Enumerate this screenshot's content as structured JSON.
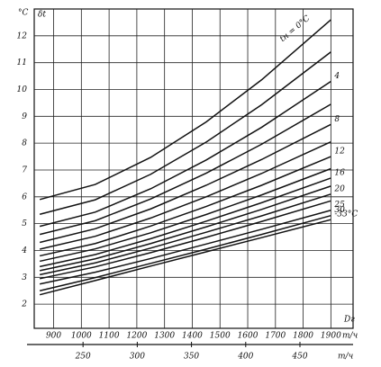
{
  "chart_data": {
    "type": "line",
    "y_unit": "°C",
    "y_label": "δt",
    "x_label": "Dг",
    "x_unit": "m/ч",
    "x2_unit": "m/ч",
    "xlim": [
      830,
      1980
    ],
    "xticks": [
      900,
      1000,
      1100,
      1200,
      1300,
      1400,
      1500,
      1600,
      1700,
      1800,
      1900
    ],
    "x2lim": [
      205,
      499
    ],
    "x2ticks": [
      250,
      300,
      350,
      400,
      450
    ],
    "ylim": [
      1.1,
      13
    ],
    "yticks": [
      2,
      3,
      4,
      5,
      6,
      7,
      8,
      9,
      10,
      11,
      12
    ],
    "grid": true,
    "x": [
      850,
      1050,
      1250,
      1450,
      1650,
      1900
    ],
    "series": [
      {
        "name": "tн = 0°C",
        "color": "#111111",
        "values": [
          5.9,
          6.46,
          7.47,
          8.79,
          10.36,
          12.6
        ]
      },
      {
        "color": "#111111",
        "values": [
          5.35,
          5.89,
          6.84,
          8.04,
          9.43,
          11.4
        ]
      },
      {
        "name": "4",
        "color": "#111111",
        "values": [
          4.9,
          5.43,
          6.3,
          7.37,
          8.59,
          10.3
        ]
      },
      {
        "color": "#111111",
        "values": [
          4.6,
          5.11,
          5.92,
          6.88,
          7.96,
          9.45
        ]
      },
      {
        "name": "8",
        "color": "#111111",
        "values": [
          4.3,
          4.81,
          5.55,
          6.43,
          7.39,
          8.7
        ]
      },
      {
        "color": "#111111",
        "values": [
          4.05,
          4.53,
          5.21,
          6.0,
          6.87,
          8.05
        ]
      },
      {
        "name": "12",
        "color": "#111111",
        "values": [
          3.8,
          4.26,
          4.91,
          5.64,
          6.43,
          7.5
        ]
      },
      {
        "color": "#111111",
        "values": [
          3.6,
          4.06,
          4.66,
          5.34,
          6.07,
          7.05
        ]
      },
      {
        "name": "16",
        "color": "#111111",
        "values": [
          3.4,
          3.85,
          4.44,
          5.09,
          5.78,
          6.7
        ]
      },
      {
        "color": "#111111",
        "values": [
          3.25,
          3.69,
          4.26,
          4.88,
          5.53,
          6.4
        ]
      },
      {
        "name": "20",
        "color": "#111111",
        "values": [
          3.1,
          3.54,
          4.09,
          4.68,
          5.29,
          6.1
        ]
      },
      {
        "color": "#111111",
        "values": [
          2.95,
          3.39,
          3.92,
          4.49,
          5.08,
          5.85
        ]
      },
      {
        "name": "25",
        "color": "#111111",
        "values": [
          2.75,
          3.19,
          3.7,
          4.24,
          4.79,
          5.5
        ]
      },
      {
        "name": "30",
        "color": "#111111",
        "values": [
          2.5,
          2.99,
          3.52,
          4.05,
          4.6,
          5.3
        ]
      },
      {
        "name": "-33°C",
        "color": "#111111",
        "values": [
          2.35,
          2.88,
          3.42,
          3.95,
          4.48,
          5.15
        ]
      }
    ]
  }
}
